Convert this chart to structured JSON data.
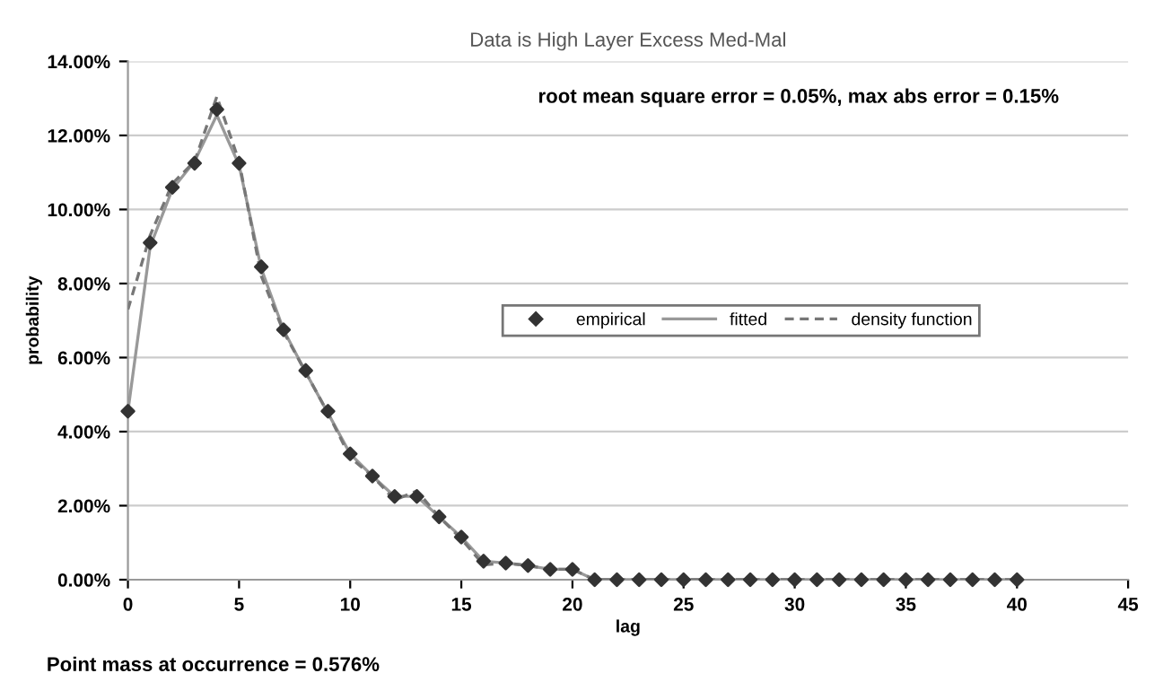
{
  "chart_data": {
    "type": "line",
    "title": "Data is High Layer Excess Med-Mal",
    "xlabel": "lag",
    "ylabel": "probability",
    "annotations": [
      "root mean square error = 0.05%, max abs error = 0.15%",
      "Point mass at occurrence = 0.576%"
    ],
    "x": [
      0,
      1,
      2,
      3,
      4,
      5,
      6,
      7,
      8,
      9,
      10,
      11,
      12,
      13,
      14,
      15,
      16,
      17,
      18,
      19,
      20,
      21,
      22,
      23,
      24,
      25,
      26,
      27,
      28,
      29,
      30,
      31,
      32,
      33,
      34,
      35,
      36,
      37,
      38,
      39,
      40
    ],
    "series": [
      {
        "name": "empirical",
        "type": "scatter",
        "color": "#333333",
        "marker": "diamond",
        "values": [
          4.55,
          9.1,
          10.6,
          11.25,
          12.7,
          11.25,
          8.45,
          6.75,
          5.65,
          4.55,
          3.4,
          2.8,
          2.25,
          2.25,
          1.7,
          1.15,
          0.5,
          0.45,
          0.38,
          0.28,
          0.28,
          0,
          0,
          0,
          0,
          0,
          0,
          0,
          0,
          0,
          0,
          0,
          0,
          0,
          0,
          0,
          0,
          0,
          0,
          0,
          0
        ]
      },
      {
        "name": "fitted",
        "color": "#999999",
        "line_style": "solid",
        "values": [
          4.55,
          9.0,
          10.55,
          11.3,
          12.55,
          11.2,
          8.4,
          6.75,
          5.6,
          4.5,
          3.4,
          2.8,
          2.25,
          2.25,
          1.7,
          1.15,
          0.5,
          0.45,
          0.38,
          0.28,
          0.28,
          0,
          0,
          0,
          0,
          0,
          0,
          0,
          0,
          0,
          0,
          0,
          0,
          0,
          0,
          0,
          0,
          0,
          0,
          0,
          0
        ]
      },
      {
        "name": "density function",
        "color": "#777777",
        "line_style": "dashed",
        "values": [
          7.3,
          9.3,
          10.7,
          11.3,
          13.05,
          11.3,
          8.2,
          6.7,
          5.6,
          4.5,
          3.3,
          2.8,
          2.15,
          2.4,
          1.7,
          1.1,
          0.4,
          0.45,
          0.38,
          0.28,
          0.28,
          0,
          0,
          0,
          0,
          0,
          0,
          0,
          0,
          0,
          0,
          0,
          0,
          0,
          0,
          0,
          0,
          0,
          0,
          0,
          0
        ]
      }
    ],
    "xlim": [
      0,
      45
    ],
    "xticks": [
      0,
      5,
      10,
      15,
      20,
      25,
      30,
      35,
      40,
      45
    ],
    "ylim": [
      0,
      14
    ],
    "yticks": [
      {
        "value": 0,
        "label": "0.00%"
      },
      {
        "value": 2,
        "label": "2.00%"
      },
      {
        "value": 4,
        "label": "4.00%"
      },
      {
        "value": 6,
        "label": "6.00%"
      },
      {
        "value": 8,
        "label": "8.00%"
      },
      {
        "value": 10,
        "label": "10.00%"
      },
      {
        "value": 12,
        "label": "12.00%"
      },
      {
        "value": 14,
        "label": "14.00%"
      }
    ],
    "grid": "y",
    "legend": "center right"
  }
}
